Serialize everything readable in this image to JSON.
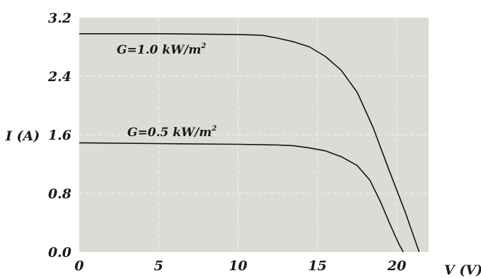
{
  "chart_data": {
    "type": "line",
    "xlabel": "V (V)",
    "ylabel": "I (A)",
    "xlim": [
      0,
      22
    ],
    "ylim": [
      0,
      3.2
    ],
    "xticks": [
      0,
      5,
      10,
      15,
      20
    ],
    "yticks": [
      0.0,
      0.8,
      1.6,
      2.4,
      3.2
    ],
    "xtick_labels": [
      "0",
      "5",
      "10",
      "15",
      "20"
    ],
    "ytick_labels": [
      "0.0",
      "0.8",
      "1.6",
      "2.4",
      "3.2"
    ],
    "grid": true,
    "grid_style": "dashed",
    "background": "#dcdcd7",
    "line_color": "#111111",
    "series": [
      {
        "label": "G=1.0 kW/m",
        "label_sup": "2",
        "x": [
          0,
          5,
          10,
          11.5,
          12.5,
          13.5,
          14.5,
          15.5,
          16.5,
          17.5,
          18.5,
          19.5,
          20.5,
          21.4
        ],
        "y": [
          2.98,
          2.98,
          2.97,
          2.96,
          2.92,
          2.87,
          2.8,
          2.67,
          2.48,
          2.18,
          1.7,
          1.12,
          0.56,
          0.0
        ]
      },
      {
        "label": "G=0.5 kW/m",
        "label_sup": "2",
        "x": [
          0,
          5,
          10,
          12.5,
          13.5,
          14.5,
          15.5,
          16.5,
          17.5,
          18.3,
          19.0,
          19.6,
          20.1,
          20.4
        ],
        "y": [
          1.49,
          1.48,
          1.47,
          1.46,
          1.45,
          1.42,
          1.38,
          1.3,
          1.18,
          0.98,
          0.67,
          0.36,
          0.12,
          0.0
        ]
      }
    ]
  }
}
